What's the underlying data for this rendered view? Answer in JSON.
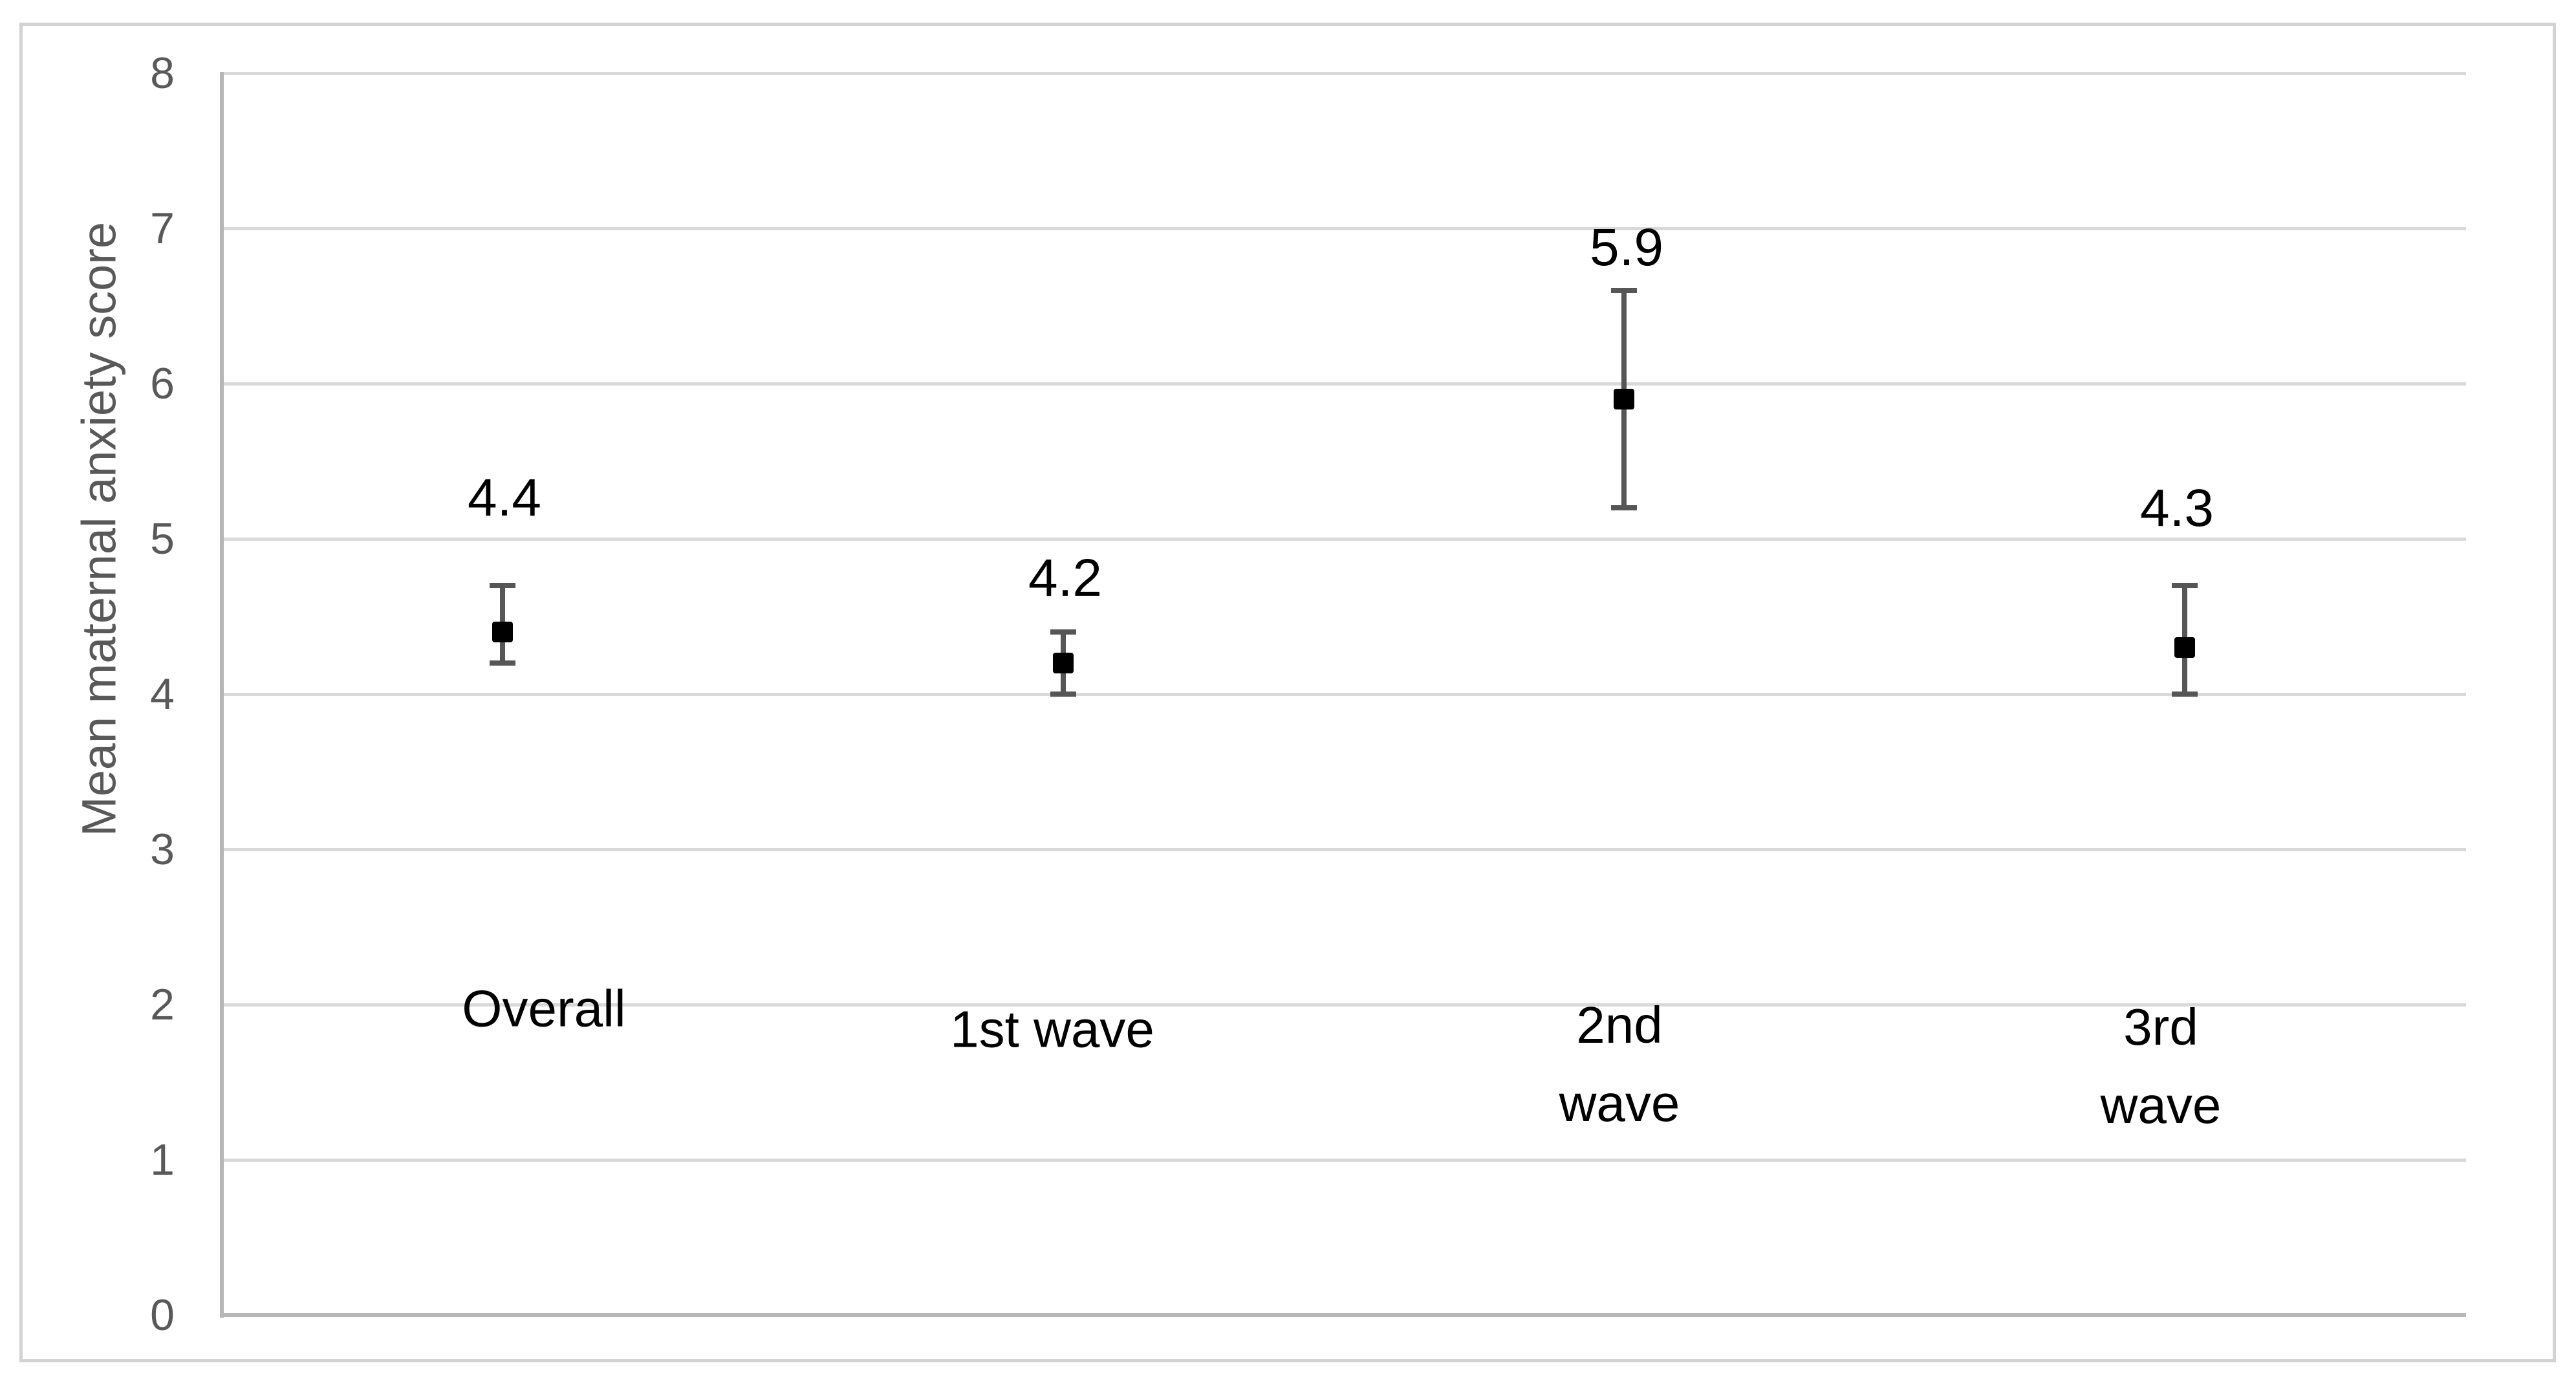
{
  "chart_data": {
    "type": "scatter",
    "title": "",
    "ylabel": "Mean maternal anxiety score",
    "xlabel": "",
    "ylim": [
      0,
      8
    ],
    "ytick_labels": [
      "8",
      "7",
      "6",
      "5",
      "4",
      "3",
      "2",
      "1",
      "0"
    ],
    "categories": [
      "Overall",
      "1st wave",
      "2nd wave",
      "3rd wave"
    ],
    "cat_lines": [
      [
        "Overall"
      ],
      [
        "1st wave"
      ],
      [
        "2nd",
        "wave"
      ],
      [
        "3rd",
        "wave"
      ]
    ],
    "points": [
      {
        "category": "Overall",
        "mean": 4.4,
        "ci_low": 4.2,
        "ci_high": 4.7,
        "label": "4.4"
      },
      {
        "category": "1st wave",
        "mean": 4.2,
        "ci_low": 4.0,
        "ci_high": 4.4,
        "label": "4.2"
      },
      {
        "category": "2nd wave",
        "mean": 5.9,
        "ci_low": 5.2,
        "ci_high": 6.6,
        "label": "5.9"
      },
      {
        "category": "3rd wave",
        "mean": 4.3,
        "ci_low": 4.0,
        "ci_high": 4.7,
        "label": "4.3"
      }
    ],
    "legend": "none",
    "grid": "horizontal",
    "marker_style": "filled-black-square-with-error-bars"
  },
  "colors": {
    "background": "#ffffff",
    "frame_border": "#d3d3d3",
    "gridline": "#d9d9d9",
    "axis_line": "#b7b7b7",
    "tick_text": "#595959",
    "label_text": "#000000",
    "error_bar": "#565656",
    "marker": "#000000"
  }
}
